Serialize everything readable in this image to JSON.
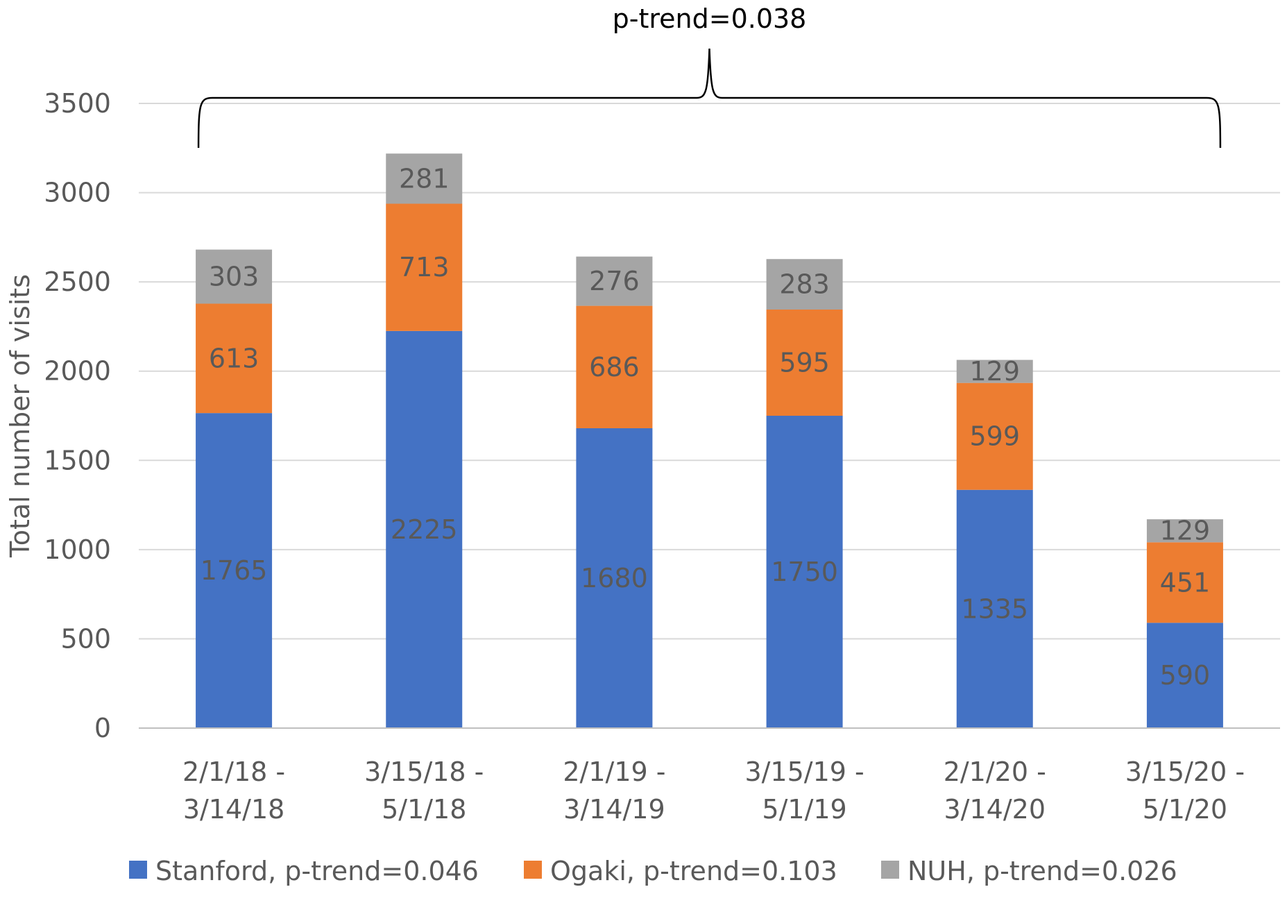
{
  "chart_data": {
    "type": "bar",
    "stacked": true,
    "categories": [
      [
        "2/1/18 -",
        "3/14/18"
      ],
      [
        "3/15/18 -",
        "5/1/18"
      ],
      [
        "2/1/19 -",
        "3/14/19"
      ],
      [
        "3/15/19 -",
        "5/1/19"
      ],
      [
        "2/1/20 -",
        "3/14/20"
      ],
      [
        "3/15/20 -",
        "5/1/20"
      ]
    ],
    "series": [
      {
        "name": "Stanford, p-trend=0.046",
        "color": "#4472c4",
        "values": [
          1765,
          2225,
          1680,
          1750,
          1335,
          590
        ]
      },
      {
        "name": "Ogaki, p-trend=0.103",
        "color": "#ed7d31",
        "values": [
          613,
          713,
          686,
          595,
          599,
          451
        ]
      },
      {
        "name": "NUH, p-trend=0.026",
        "color": "#a5a5a5",
        "values": [
          303,
          281,
          276,
          283,
          129,
          129
        ]
      }
    ],
    "ylabel": "Total number of visits",
    "xlabel": "",
    "ylim": [
      0,
      3500
    ],
    "yticks": [
      0,
      500,
      1000,
      1500,
      2000,
      2500,
      3000,
      3500
    ],
    "grid": true,
    "legend": "bottom",
    "annotation": {
      "text": "p-trend=0.038",
      "spans": "all categories"
    }
  }
}
